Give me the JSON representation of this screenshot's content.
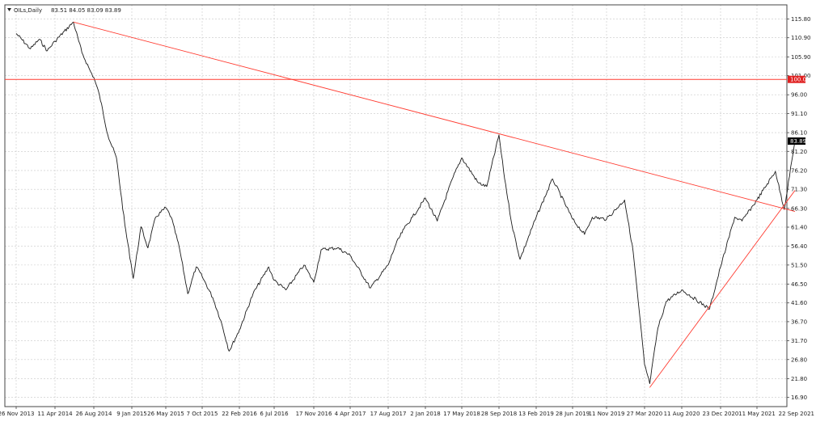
{
  "header": {
    "symbol_label": "OILs,Daily",
    "ohlc": "83.51 84.05 83.09 83.89",
    "dropdown_icon": "triangle-down-icon"
  },
  "colors": {
    "price_line": "#1a1a1a",
    "trend_line": "#ff3b30",
    "grid": "#c8c8c8",
    "level_badge": "#e02020",
    "price_badge": "#000000",
    "background": "#ffffff"
  },
  "chart_data": {
    "type": "line",
    "title": "",
    "xlabel": "",
    "ylabel": "",
    "ylim": [
      14.5,
      119.5
    ],
    "x_ticks": [
      "26 Nov 2013",
      "11 Apr 2014",
      "26 Aug 2014",
      "9 Jan 2015",
      "26 May 2015",
      "7 Oct 2015",
      "22 Feb 2016",
      "6 Jul 2016",
      "17 Nov 2016",
      "4 Apr 2017",
      "17 Aug 2017",
      "2 Jan 2018",
      "17 May 2018",
      "28 Sep 2018",
      "13 Feb 2019",
      "28 Jun 2019",
      "11 Nov 2019",
      "27 Mar 2020",
      "11 Aug 2020",
      "23 Dec 2020",
      "11 May 2021",
      "22 Sep 2021"
    ],
    "y_ticks": [
      115.8,
      110.9,
      105.9,
      101.0,
      96.0,
      91.1,
      86.1,
      81.2,
      76.2,
      71.3,
      66.3,
      61.4,
      56.4,
      51.5,
      46.5,
      41.6,
      36.7,
      31.7,
      26.8,
      21.8,
      16.9
    ],
    "y_tick_labels": [
      "115.80",
      "110.90",
      "105.90",
      "101.00",
      "96.00",
      "91.10",
      "86.10",
      "81.20",
      "76.20",
      "71.30",
      "66.30",
      "61.40",
      "56.40",
      "51.50",
      "46.50",
      "41.60",
      "36.70",
      "31.70",
      "26.80",
      "21.80",
      "16.90"
    ],
    "series": [
      {
        "name": "OILs,Daily",
        "points": [
          [
            "26 Nov 2013",
            112.0
          ],
          [
            "Jan 2014",
            108.0
          ],
          [
            "Feb 2014",
            110.5
          ],
          [
            "Mar 2014",
            107.5
          ],
          [
            "11 Apr 2014",
            110.0
          ],
          [
            "Jun 2014",
            115.0
          ],
          [
            "Jul 2014",
            107.0
          ],
          [
            "Aug 2014",
            102.0
          ],
          [
            "26 Aug 2014",
            100.5
          ],
          [
            "Sep 2014",
            96.0
          ],
          [
            "Oct 2014",
            85.5
          ],
          [
            "Nov 2014",
            79.5
          ],
          [
            "Dec 2014",
            62.0
          ],
          [
            "9 Jan 2015",
            50.5
          ],
          [
            "Jan 2015",
            48.0
          ],
          [
            "Feb 2015",
            61.5
          ],
          [
            "Mar 2015",
            56.0
          ],
          [
            "Apr 2015",
            64.0
          ],
          [
            "26 May 2015",
            66.5
          ],
          [
            "Jun 2015",
            64.0
          ],
          [
            "Jul 2015",
            56.0
          ],
          [
            "Aug 2015",
            44.0
          ],
          [
            "Sep 2015",
            51.0
          ],
          [
            "7 Oct 2015",
            48.5
          ],
          [
            "Nov 2015",
            43.0
          ],
          [
            "Dec 2015",
            37.0
          ],
          [
            "Jan 2016",
            29.0
          ],
          [
            "22 Feb 2016",
            34.5
          ],
          [
            "Apr 2016",
            44.0
          ],
          [
            "Jun 2016",
            51.0
          ],
          [
            "6 Jul 2016",
            47.5
          ],
          [
            "Aug 2016",
            45.0
          ],
          [
            "Oct 2016",
            51.5
          ],
          [
            "17 Nov 2016",
            47.0
          ],
          [
            "Dec 2016",
            55.5
          ],
          [
            "Feb 2017",
            56.0
          ],
          [
            "4 Apr 2017",
            54.0
          ],
          [
            "Jun 2017",
            45.5
          ],
          [
            "17 Aug 2017",
            51.5
          ],
          [
            "Sep 2017",
            57.0
          ],
          [
            "Oct 2017",
            61.0
          ],
          [
            "Nov 2017",
            64.0
          ],
          [
            "2 Jan 2018",
            69.0
          ],
          [
            "Feb 2018",
            63.0
          ],
          [
            "Apr 2018",
            74.5
          ],
          [
            "17 May 2018",
            79.5
          ],
          [
            "Jul 2018",
            73.0
          ],
          [
            "Aug 2018",
            72.0
          ],
          [
            "28 Sep 2018",
            85.5
          ],
          [
            "Oct 2018",
            76.0
          ],
          [
            "Nov 2018",
            62.0
          ],
          [
            "Dec 2018",
            53.0
          ],
          [
            "13 Feb 2019",
            64.0
          ],
          [
            "Apr 2019",
            74.0
          ],
          [
            "28 Jun 2019",
            63.5
          ],
          [
            "Aug 2019",
            59.5
          ],
          [
            "Sep 2019",
            64.0
          ],
          [
            "11 Nov 2019",
            63.5
          ],
          [
            "Jan 2020",
            68.5
          ],
          [
            "Feb 2020",
            55.0
          ],
          [
            "27 Mar 2020",
            25.5
          ],
          [
            "Apr 2020",
            20.5
          ],
          [
            "May 2020",
            35.0
          ],
          [
            "Jun 2020",
            42.0
          ],
          [
            "11 Aug 2020",
            45.0
          ],
          [
            "Nov 2020",
            40.0
          ],
          [
            "23 Dec 2020",
            51.0
          ],
          [
            "Feb 2021",
            64.0
          ],
          [
            "Mar 2021",
            63.0
          ],
          [
            "11 May 2021",
            68.5
          ],
          [
            "Jul 2021",
            76.0
          ],
          [
            "Aug 2021",
            66.0
          ],
          [
            "22 Sep 2021",
            83.89
          ]
        ]
      }
    ],
    "trend_lines": [
      {
        "from": [
          "Jun 2014",
          115.0
        ],
        "to": [
          "22 Sep 2021",
          65.5
        ]
      },
      {
        "from": [
          "Apr 2020",
          19.5
        ],
        "to": [
          "22 Sep 2021",
          71.0
        ]
      }
    ],
    "horizontal_level": {
      "value": 100.02,
      "label": "100.02"
    },
    "last_price": {
      "value": 83.89,
      "label": "83.89"
    },
    "grid": true
  }
}
